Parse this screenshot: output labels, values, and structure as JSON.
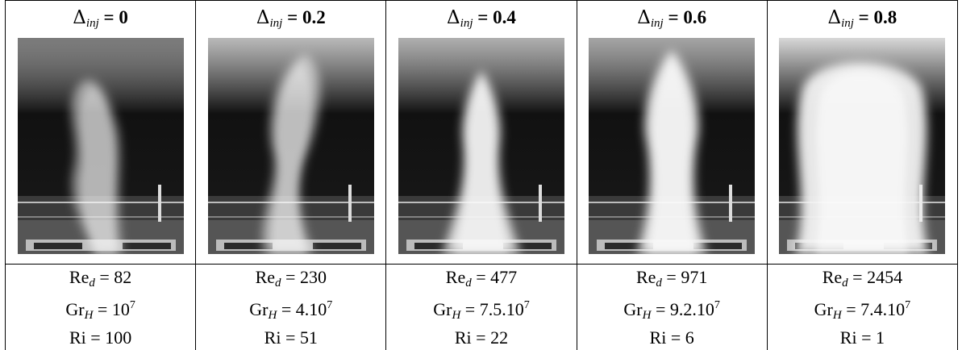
{
  "panels": [
    {
      "delta_value": "0",
      "re": "82",
      "gr_mantissa": "10",
      "gr_exp": "7",
      "ri": "100"
    },
    {
      "delta_value": "0.2",
      "re": "230",
      "gr_mantissa": "4.10",
      "gr_exp": "7",
      "ri": "51"
    },
    {
      "delta_value": "0.4",
      "re": "477",
      "gr_mantissa": "7.5.10",
      "gr_exp": "7",
      "ri": "22"
    },
    {
      "delta_value": "0.6",
      "re": "971",
      "gr_mantissa": "9.2.10",
      "gr_exp": "7",
      "ri": "6"
    },
    {
      "delta_value": "0.8",
      "re": "2454",
      "gr_mantissa": "7.4.10",
      "gr_exp": "7",
      "ri": "1"
    }
  ],
  "labels": {
    "delta_symbol": "Δ",
    "delta_sub": "inj",
    "eq": " = ",
    "re_name": "Re",
    "re_sub": "d",
    "gr_name": "Gr",
    "gr_sub": "H",
    "ri_name": "Ri"
  }
}
